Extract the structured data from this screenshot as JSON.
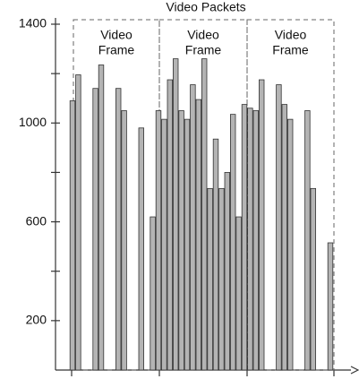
{
  "chart_data": {
    "type": "bar",
    "title": "Video Packets",
    "categories": [
      null,
      null,
      null,
      null,
      null,
      null,
      null,
      null,
      null,
      null,
      null,
      null,
      null,
      null,
      null,
      null,
      null,
      null,
      null,
      null,
      null,
      null,
      null,
      null,
      null,
      null,
      null,
      null,
      null,
      null,
      null,
      null,
      null,
      null,
      null,
      null,
      null,
      null,
      null,
      null,
      null,
      null,
      null,
      null,
      null,
      null
    ],
    "values": [
      1090,
      1195,
      null,
      null,
      1140,
      1235,
      null,
      null,
      1140,
      1050,
      null,
      null,
      980,
      null,
      620,
      1050,
      1015,
      1175,
      1260,
      1050,
      1015,
      1155,
      1095,
      1260,
      735,
      935,
      735,
      800,
      1035,
      620,
      1075,
      1060,
      1050,
      1175,
      null,
      null,
      1155,
      1075,
      1015,
      null,
      null,
      1050,
      735,
      null,
      null,
      515
    ],
    "color": "#b4b4b4",
    "ylim": [
      0,
      1400
    ],
    "yticks": [
      200,
      600,
      1000,
      1400
    ],
    "minor_yticks": [
      400,
      800,
      1200
    ],
    "annotations": [
      [
        "Video",
        "Frame"
      ],
      [
        "Video",
        "Frame"
      ],
      [
        "Video",
        "Frame"
      ]
    ]
  }
}
